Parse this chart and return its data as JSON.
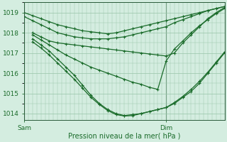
{
  "title": "",
  "xlabel": "Pression niveau de la mer( hPa )",
  "background_color": "#d4ede0",
  "grid_color": "#98c4a8",
  "line_color": "#1a6b2a",
  "spine_color": "#2a5a3a",
  "ylim": [
    1013.7,
    1019.5
  ],
  "xlim": [
    0,
    48
  ],
  "yticks": [
    1014,
    1015,
    1016,
    1017,
    1018,
    1019
  ],
  "sam_x": 0,
  "dim_x": 34,
  "xtick_positions": [
    0,
    34
  ],
  "xtick_labels": [
    "Sam",
    "Dim"
  ],
  "series": [
    {
      "x": [
        0,
        2,
        4,
        6,
        8,
        10,
        12,
        14,
        16,
        18,
        20,
        22,
        24,
        26,
        28,
        30,
        32,
        34,
        36,
        38,
        40,
        42,
        44,
        46,
        48
      ],
      "y": [
        1019.0,
        1018.85,
        1018.7,
        1018.55,
        1018.4,
        1018.3,
        1018.2,
        1018.1,
        1018.05,
        1018.0,
        1017.95,
        1018.0,
        1018.1,
        1018.2,
        1018.3,
        1018.4,
        1018.5,
        1018.6,
        1018.7,
        1018.8,
        1018.9,
        1019.0,
        1019.1,
        1019.2,
        1019.3
      ]
    },
    {
      "x": [
        0,
        2,
        4,
        6,
        8,
        10,
        12,
        14,
        16,
        18,
        20,
        22,
        24,
        26,
        28,
        30,
        32,
        34,
        36,
        38,
        40,
        42,
        44,
        46,
        48
      ],
      "y": [
        1018.8,
        1018.6,
        1018.4,
        1018.2,
        1018.0,
        1017.9,
        1017.8,
        1017.75,
        1017.7,
        1017.7,
        1017.7,
        1017.75,
        1017.8,
        1017.9,
        1018.0,
        1018.1,
        1018.2,
        1018.3,
        1018.5,
        1018.65,
        1018.8,
        1018.95,
        1019.1,
        1019.2,
        1019.3
      ]
    },
    {
      "x": [
        2,
        4,
        6,
        8,
        10,
        12,
        14,
        16,
        18,
        20,
        22,
        24,
        26,
        28,
        30,
        32,
        34,
        36,
        38,
        40,
        42,
        44,
        46,
        48
      ],
      "y": [
        1018.0,
        1017.8,
        1017.6,
        1017.5,
        1017.45,
        1017.4,
        1017.35,
        1017.3,
        1017.25,
        1017.2,
        1017.15,
        1017.1,
        1017.05,
        1017.0,
        1016.95,
        1016.9,
        1016.85,
        1017.0,
        1017.5,
        1017.9,
        1018.3,
        1018.7,
        1019.0,
        1019.25
      ]
    },
    {
      "x": [
        2,
        4,
        6,
        8,
        10,
        12,
        14,
        16,
        18,
        20,
        22,
        24,
        26,
        28,
        30,
        32,
        34,
        36,
        38,
        40,
        42,
        44,
        46,
        48
      ],
      "y": [
        1017.9,
        1017.65,
        1017.4,
        1017.15,
        1016.9,
        1016.7,
        1016.5,
        1016.3,
        1016.15,
        1016.0,
        1015.85,
        1015.7,
        1015.55,
        1015.45,
        1015.3,
        1015.2,
        1016.6,
        1017.2,
        1017.6,
        1018.0,
        1018.35,
        1018.65,
        1018.95,
        1019.2
      ]
    },
    {
      "x": [
        2,
        4,
        6,
        8,
        10,
        12,
        14,
        16,
        18,
        20,
        22,
        24,
        26,
        28,
        30,
        32,
        34,
        36,
        38,
        40,
        42,
        44,
        46,
        48
      ],
      "y": [
        1017.7,
        1017.4,
        1017.1,
        1016.7,
        1016.3,
        1015.9,
        1015.4,
        1014.9,
        1014.5,
        1014.2,
        1014.0,
        1013.9,
        1013.95,
        1014.0,
        1014.1,
        1014.2,
        1014.3,
        1014.5,
        1014.8,
        1015.1,
        1015.5,
        1016.0,
        1016.5,
        1017.0
      ]
    },
    {
      "x": [
        2,
        4,
        6,
        8,
        10,
        12,
        14,
        16,
        18,
        20,
        22,
        24,
        26,
        28,
        30,
        32,
        34,
        36,
        38,
        40,
        42,
        44,
        46,
        48
      ],
      "y": [
        1017.55,
        1017.25,
        1016.9,
        1016.5,
        1016.1,
        1015.7,
        1015.25,
        1014.8,
        1014.45,
        1014.15,
        1013.95,
        1013.88,
        1013.9,
        1014.0,
        1014.1,
        1014.2,
        1014.3,
        1014.55,
        1014.85,
        1015.2,
        1015.6,
        1016.05,
        1016.55,
        1017.05
      ]
    }
  ]
}
